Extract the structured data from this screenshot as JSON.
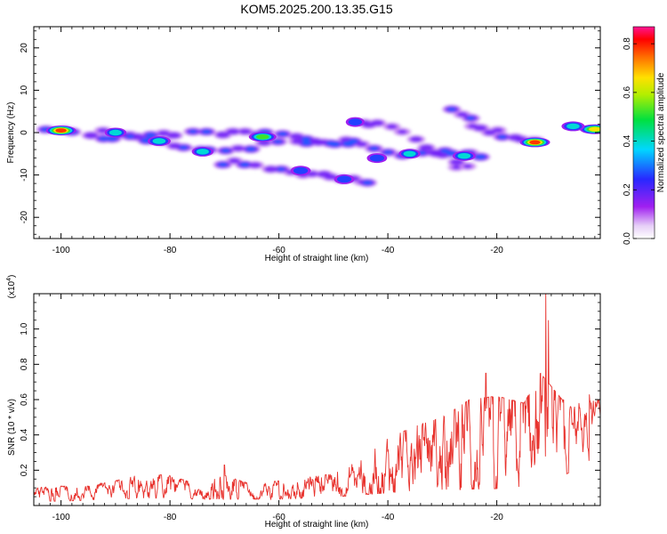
{
  "title": "KOM5.2025.200.13.35.G15",
  "chart_data": [
    {
      "type": "heatmap",
      "xlabel": "Height of straight line (km)",
      "ylabel": "Frequency (Hz)",
      "xlim": [
        -105,
        -1
      ],
      "ylim": [
        -25,
        25
      ],
      "xticks": [
        -100,
        -80,
        -60,
        -40,
        -20
      ],
      "yticks": [
        -20,
        -10,
        0,
        10,
        20
      ],
      "colorbar": {
        "label": "Normalized spectral amplitude",
        "range": [
          0,
          0.87
        ],
        "ticks": [
          "0.0",
          "0.2",
          "0.4",
          "0.6",
          "0.8"
        ],
        "colormap": "rainbow (white-purple-blue-cyan-green-yellow-orange-red-magenta)"
      },
      "bands": [
        {
          "points": [
            [
              -103,
              1
            ],
            [
              -95,
              -1
            ],
            [
              -88,
              -1
            ],
            [
              -82,
              -2
            ],
            [
              -75,
              -4
            ],
            [
              -68,
              -4
            ],
            [
              -60,
              -2
            ],
            [
              -52,
              -2
            ],
            [
              -45,
              -3
            ],
            [
              -38,
              -5
            ],
            [
              -32,
              -5
            ],
            [
              -26,
              -5
            ],
            [
              -21,
              -6
            ]
          ],
          "amplitude": 0.35
        },
        {
          "points": [
            [
              -92,
              0
            ],
            [
              -84,
              -1
            ],
            [
              -76,
              0
            ],
            [
              -68,
              0
            ],
            [
              -62,
              0
            ],
            [
              -55,
              -1
            ],
            [
              -50,
              -2
            ],
            [
              -44,
              -2
            ]
          ],
          "amplitude": 0.3
        },
        {
          "points": [
            [
              -70,
              -7
            ],
            [
              -64,
              -8
            ],
            [
              -58,
              -9
            ],
            [
              -52,
              -10
            ],
            [
              -47,
              -11
            ],
            [
              -42,
              -12
            ]
          ],
          "amplitude": 0.3
        },
        {
          "points": [
            [
              -45,
              3
            ],
            [
              -40,
              1
            ],
            [
              -33,
              -3
            ],
            [
              -28,
              -7
            ],
            [
              -25,
              -9
            ]
          ],
          "amplitude": 0.25
        },
        {
          "points": [
            [
              -28,
              5
            ],
            [
              -24,
              2
            ],
            [
              -20,
              0
            ],
            [
              -15,
              -2
            ],
            [
              -11,
              -2
            ]
          ],
          "amplitude": 0.3
        }
      ],
      "peaks": [
        {
          "x": -100,
          "y": 0.5,
          "amplitude": 0.87
        },
        {
          "x": -13,
          "y": -2.3,
          "amplitude": 0.85
        },
        {
          "x": -2,
          "y": 0.8,
          "amplitude": 0.75
        },
        {
          "x": -63,
          "y": -1,
          "amplitude": 0.6
        },
        {
          "x": -26,
          "y": -5.5,
          "amplitude": 0.45
        },
        {
          "x": -82,
          "y": -2,
          "amplitude": 0.45
        },
        {
          "x": -90,
          "y": 0,
          "amplitude": 0.4
        },
        {
          "x": -74,
          "y": -4.5,
          "amplitude": 0.4
        },
        {
          "x": -56,
          "y": -9,
          "amplitude": 0.35
        },
        {
          "x": -48,
          "y": -11,
          "amplitude": 0.35
        },
        {
          "x": -42,
          "y": -6,
          "amplitude": 0.35
        },
        {
          "x": -36,
          "y": -5,
          "amplitude": 0.4
        },
        {
          "x": -46,
          "y": 2.5,
          "amplitude": 0.3
        },
        {
          "x": -6,
          "y": 1.5,
          "amplitude": 0.45
        }
      ]
    },
    {
      "type": "line",
      "xlabel": "Height of straight line (km)",
      "ylabel": "SNR (10 * v/v)",
      "yscale_label": "(x10^4)",
      "xlim": [
        -105,
        -1
      ],
      "ylim": [
        0,
        1.2
      ],
      "xticks": [
        -100,
        -80,
        -60,
        -40,
        -20
      ],
      "yticks": [
        0.2,
        0.4,
        0.6,
        0.8,
        1.0
      ],
      "series": [
        {
          "color": "#e8322d",
          "envelope": [
            [
              -105,
              0.04,
              0.1
            ],
            [
              -100,
              0.04,
              0.11
            ],
            [
              -95,
              0.05,
              0.11
            ],
            [
              -90,
              0.06,
              0.14
            ],
            [
              -85,
              0.07,
              0.18
            ],
            [
              -80,
              0.07,
              0.17
            ],
            [
              -75,
              0.06,
              0.12
            ],
            [
              -70,
              0.06,
              0.17
            ],
            [
              -65,
              0.06,
              0.12
            ],
            [
              -60,
              0.06,
              0.14
            ],
            [
              -55,
              0.07,
              0.16
            ],
            [
              -50,
              0.08,
              0.18
            ],
            [
              -45,
              0.1,
              0.26
            ],
            [
              -40,
              0.12,
              0.38
            ],
            [
              -35,
              0.14,
              0.45
            ],
            [
              -30,
              0.15,
              0.5
            ],
            [
              -25,
              0.15,
              0.6
            ],
            [
              -20,
              0.16,
              0.62
            ],
            [
              -15,
              0.18,
              0.58
            ],
            [
              -12,
              0.2,
              0.75
            ],
            [
              -8,
              0.28,
              0.6
            ],
            [
              -5,
              0.35,
              0.58
            ],
            [
              -1,
              0.5,
              0.6
            ]
          ],
          "spikes": [
            [
              -70,
              0.23
            ],
            [
              -22,
              0.75
            ],
            [
              -11,
              1.2
            ],
            [
              -10.5,
              1.05
            ],
            [
              -3,
              0.63
            ]
          ]
        }
      ]
    }
  ]
}
